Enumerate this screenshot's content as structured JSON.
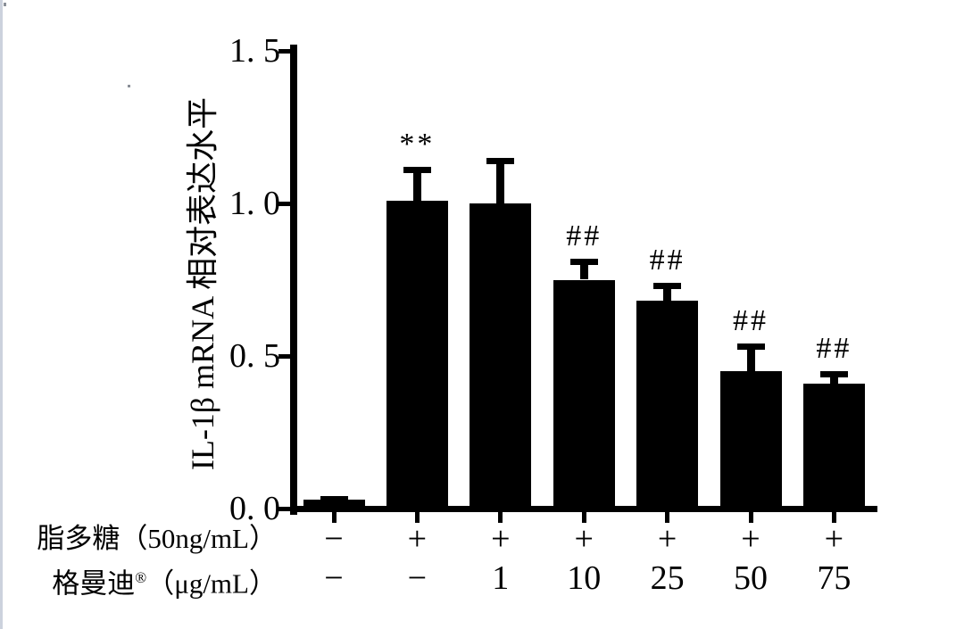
{
  "page": {
    "background": "#ffffff",
    "edge_line_color": "#ccd2dd",
    "artifact_dot_color": "#8a8f98"
  },
  "chart_data": {
    "type": "bar",
    "title": "",
    "xlabel": "",
    "ylabel": "IL-1β mRNA 相对表达水平",
    "ylim": [
      0,
      1.5
    ],
    "grid": false,
    "legend": null,
    "bar_color": "#000000",
    "y_ticks": [
      {
        "value": 0.0,
        "label": "0. 0"
      },
      {
        "value": 0.5,
        "label": "0. 5"
      },
      {
        "value": 1.0,
        "label": "1. 0"
      },
      {
        "value": 1.5,
        "label": "1. 5"
      }
    ],
    "bars": [
      {
        "value": 0.03,
        "error": 0.01,
        "annotation": ""
      },
      {
        "value": 1.01,
        "error": 0.11,
        "annotation": "**"
      },
      {
        "value": 1.0,
        "error": 0.15,
        "annotation": ""
      },
      {
        "value": 0.75,
        "error": 0.07,
        "annotation": "##"
      },
      {
        "value": 0.68,
        "error": 0.06,
        "annotation": "##"
      },
      {
        "value": 0.45,
        "error": 0.09,
        "annotation": "##"
      },
      {
        "value": 0.41,
        "error": 0.04,
        "annotation": "##"
      }
    ],
    "x_table_rows": [
      {
        "parts": [
          {
            "text": "脂多糖（50ng/mL）",
            "sup": false
          }
        ],
        "cells": [
          "−",
          "+",
          "+",
          "+",
          "+",
          "+",
          "+"
        ]
      },
      {
        "parts": [
          {
            "text": "格曼迪",
            "sup": false
          },
          {
            "text": "®",
            "sup": true
          },
          {
            "text": "（μg/mL）",
            "sup": false
          }
        ],
        "cells": [
          "−",
          "−",
          "1",
          "10",
          "25",
          "50",
          "75"
        ]
      }
    ]
  }
}
